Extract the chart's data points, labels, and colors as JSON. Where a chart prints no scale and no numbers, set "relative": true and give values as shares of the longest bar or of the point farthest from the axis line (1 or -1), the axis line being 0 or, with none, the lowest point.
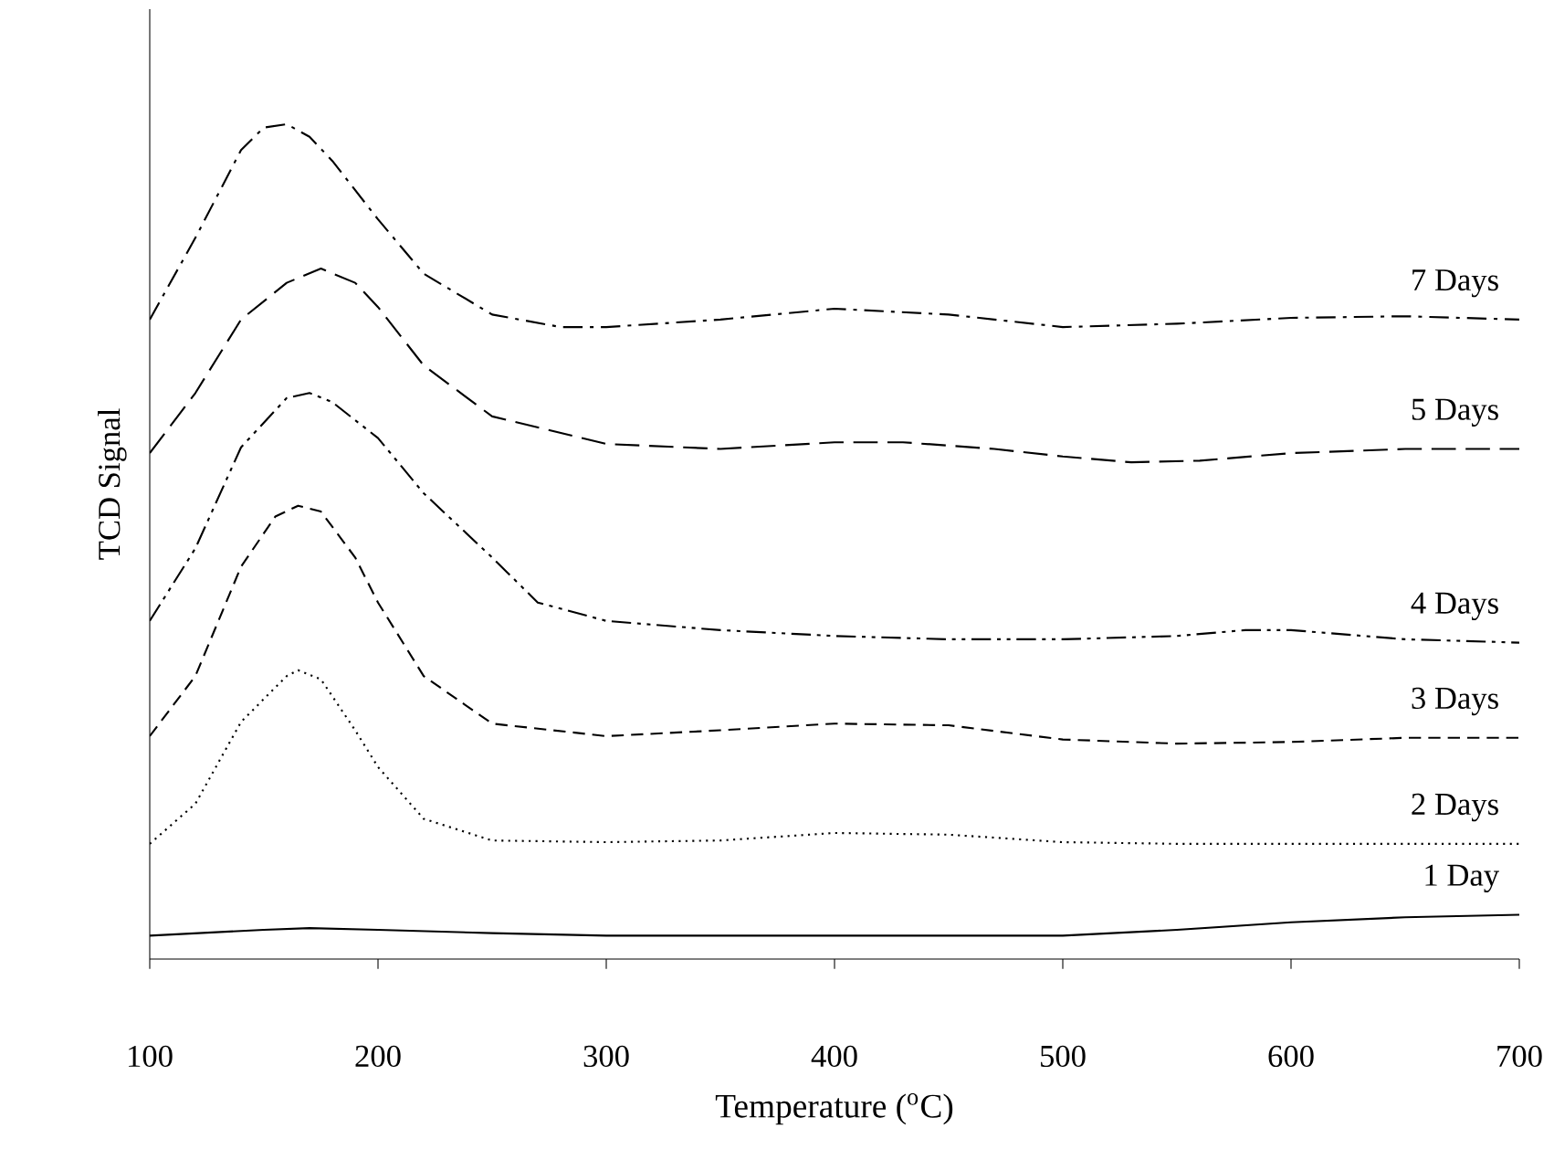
{
  "chart_data": {
    "type": "line",
    "relative": true,
    "xlabel": "Temperature ($^{o}$C)",
    "ylabel": "TCD Signal",
    "xlim": [
      100,
      700
    ],
    "xticks": [
      100,
      200,
      300,
      400,
      500,
      600,
      700
    ],
    "grid": false,
    "legend": false,
    "marker": "none",
    "series": [
      {
        "name": "7 Days",
        "color": "#000000",
        "line_style": "dashdot",
        "x": [
          100,
          120,
          140,
          150,
          160,
          170,
          180,
          200,
          220,
          250,
          280,
          300,
          350,
          400,
          450,
          500,
          550,
          600,
          650,
          700
        ],
        "values": [
          0.766,
          0.864,
          0.969,
          0.996,
          1.0,
          0.985,
          0.956,
          0.886,
          0.821,
          0.772,
          0.757,
          0.757,
          0.766,
          0.779,
          0.772,
          0.757,
          0.761,
          0.768,
          0.77,
          0.766
        ]
      },
      {
        "name": "5 Days",
        "color": "#000000",
        "line_style": "longdashed",
        "x": [
          100,
          120,
          140,
          160,
          175,
          190,
          200,
          220,
          250,
          300,
          350,
          400,
          430,
          470,
          500,
          530,
          560,
          600,
          650,
          700
        ],
        "values": [
          0.606,
          0.678,
          0.766,
          0.81,
          0.827,
          0.81,
          0.781,
          0.711,
          0.65,
          0.617,
          0.611,
          0.619,
          0.619,
          0.611,
          0.602,
          0.595,
          0.597,
          0.606,
          0.611,
          0.611
        ]
      },
      {
        "name": "4 Days",
        "color": "#000000",
        "line_style": "dashdotdot",
        "x": [
          100,
          120,
          140,
          160,
          170,
          180,
          200,
          220,
          250,
          270,
          300,
          350,
          400,
          450,
          500,
          550,
          580,
          600,
          650,
          700
        ],
        "values": [
          0.405,
          0.492,
          0.613,
          0.672,
          0.678,
          0.667,
          0.624,
          0.558,
          0.481,
          0.427,
          0.405,
          0.394,
          0.387,
          0.383,
          0.383,
          0.387,
          0.394,
          0.394,
          0.383,
          0.379
        ]
      },
      {
        "name": "3 Days",
        "color": "#000000",
        "line_style": "dashed",
        "x": [
          100,
          120,
          140,
          155,
          165,
          175,
          190,
          200,
          220,
          250,
          300,
          350,
          400,
          450,
          500,
          550,
          600,
          650,
          700
        ],
        "values": [
          0.267,
          0.339,
          0.47,
          0.53,
          0.543,
          0.536,
          0.481,
          0.427,
          0.339,
          0.282,
          0.267,
          0.274,
          0.282,
          0.28,
          0.263,
          0.258,
          0.26,
          0.265,
          0.265
        ]
      },
      {
        "name": "2 Days",
        "color": "#000000",
        "line_style": "dotted",
        "x": [
          100,
          120,
          140,
          160,
          165,
          175,
          190,
          200,
          220,
          250,
          300,
          350,
          400,
          450,
          500,
          550,
          600,
          650,
          700
        ],
        "values": [
          0.138,
          0.186,
          0.284,
          0.339,
          0.346,
          0.335,
          0.274,
          0.23,
          0.168,
          0.142,
          0.14,
          0.142,
          0.151,
          0.149,
          0.14,
          0.138,
          0.138,
          0.138,
          0.138
        ]
      },
      {
        "name": "1 Day",
        "color": "#000000",
        "line_style": "solid",
        "x": [
          100,
          150,
          170,
          200,
          250,
          300,
          400,
          500,
          550,
          600,
          650,
          700
        ],
        "values": [
          0.028,
          0.035,
          0.037,
          0.035,
          0.031,
          0.028,
          0.028,
          0.028,
          0.035,
          0.044,
          0.05,
          0.053
        ]
      }
    ]
  }
}
